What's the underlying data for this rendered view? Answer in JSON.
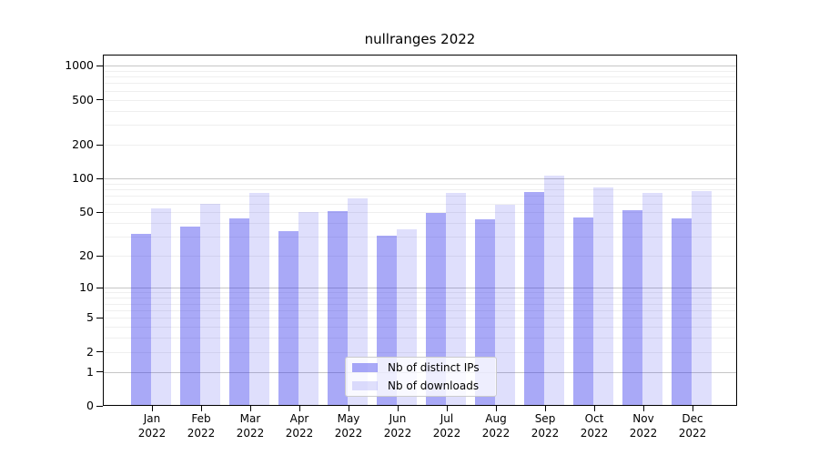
{
  "chart_data": {
    "type": "bar",
    "title": "nullranges 2022",
    "categories": [
      "Jan 2022",
      "Feb 2022",
      "Mar 2022",
      "Apr 2022",
      "May 2022",
      "Jun 2022",
      "Jul 2022",
      "Aug 2022",
      "Sep 2022",
      "Oct 2022",
      "Nov 2022",
      "Dec 2022"
    ],
    "series": [
      {
        "name": "Nb of distinct IPs",
        "values": [
          32,
          37,
          44,
          34,
          51,
          31,
          49,
          43,
          76,
          45,
          52,
          44
        ],
        "color": "rgba(40,40,235,0.40)"
      },
      {
        "name": "Nb of downloads",
        "values": [
          54,
          59,
          75,
          50,
          67,
          35,
          74,
          58,
          106,
          83,
          75,
          78
        ],
        "color": "rgba(40,40,235,0.15)"
      }
    ],
    "xlabel": "",
    "ylabel": "",
    "yscale": "log1p",
    "ylim": [
      0,
      1000
    ],
    "yticks": [
      0,
      1,
      2,
      5,
      10,
      20,
      50,
      100,
      200,
      500,
      1000
    ],
    "grid": true,
    "legend_position": "lower center",
    "colors": {
      "major_grid": "#c6c6c6",
      "minor_grid": "#efefef",
      "axis": "#000000",
      "background": "#ffffff"
    }
  }
}
